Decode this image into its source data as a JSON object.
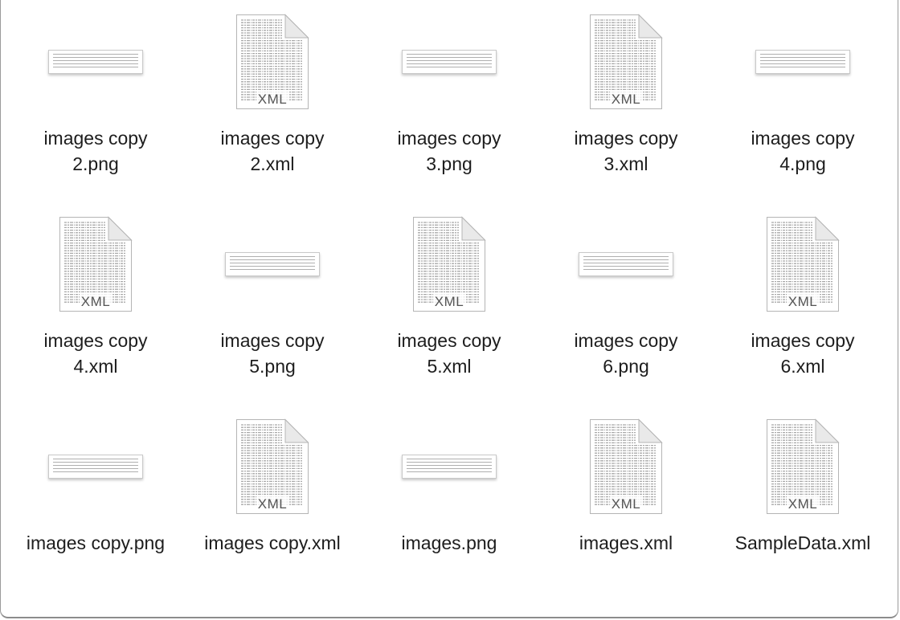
{
  "files": [
    {
      "type": "png",
      "line1": "images copy",
      "line2": "2.png"
    },
    {
      "type": "xml",
      "line1": "images copy",
      "line2": "2.xml"
    },
    {
      "type": "png",
      "line1": "images copy",
      "line2": "3.png"
    },
    {
      "type": "xml",
      "line1": "images copy",
      "line2": "3.xml"
    },
    {
      "type": "png",
      "line1": "images copy",
      "line2": "4.png"
    },
    {
      "type": "xml",
      "line1": "images copy",
      "line2": "4.xml"
    },
    {
      "type": "png",
      "line1": "images copy",
      "line2": "5.png"
    },
    {
      "type": "xml",
      "line1": "images copy",
      "line2": "5.xml"
    },
    {
      "type": "png",
      "line1": "images copy",
      "line2": "6.png"
    },
    {
      "type": "xml",
      "line1": "images copy",
      "line2": "6.xml"
    },
    {
      "type": "png",
      "line1": "images copy.png",
      "line2": ""
    },
    {
      "type": "xml",
      "line1": "images copy.xml",
      "line2": ""
    },
    {
      "type": "png",
      "line1": "images.png",
      "line2": ""
    },
    {
      "type": "xml",
      "line1": "images.xml",
      "line2": ""
    },
    {
      "type": "xml",
      "line1": "SampleData.xml",
      "line2": ""
    }
  ],
  "xml_badge": "XML",
  "colors": {
    "label_text": "#1d1d1d",
    "badge_text": "#555555",
    "doc_border": "#b5b5b5"
  },
  "icons": {
    "png": "image-thumbnail-icon",
    "xml": "xml-document-icon"
  }
}
